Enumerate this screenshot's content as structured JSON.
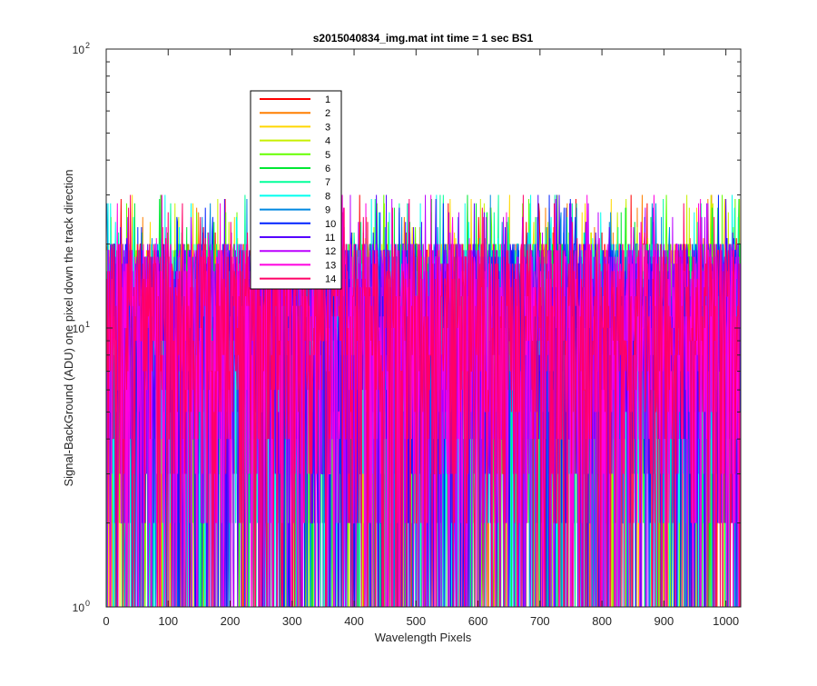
{
  "chart_data": {
    "type": "line",
    "title": "s2015040834_img.mat int time = 1 sec   BS1",
    "xlabel": "Wavelength Pixels",
    "ylabel": "Signal-BackGround (ADU) one pixel down the track direction",
    "xlim": [
      0,
      1024
    ],
    "ylim": [
      1,
      100
    ],
    "yscale": "log",
    "grid": false,
    "legend_position": "upper-left",
    "x_ticks": [
      0,
      100,
      200,
      300,
      400,
      500,
      600,
      700,
      800,
      900,
      1000
    ],
    "y_ticks": [
      {
        "value": 1,
        "base": "10",
        "exp": "0"
      },
      {
        "value": 10,
        "base": "10",
        "exp": "1"
      },
      {
        "value": 100,
        "base": "10",
        "exp": "2"
      }
    ],
    "x_range": [
      1,
      1024
    ],
    "value_range": [
      1,
      30
    ],
    "series": [
      {
        "name": "1",
        "color": "#ff0000"
      },
      {
        "name": "2",
        "color": "#ff7f00"
      },
      {
        "name": "3",
        "color": "#ffd700"
      },
      {
        "name": "4",
        "color": "#c8f000"
      },
      {
        "name": "5",
        "color": "#66ff00"
      },
      {
        "name": "6",
        "color": "#00e833"
      },
      {
        "name": "7",
        "color": "#00ff99"
      },
      {
        "name": "8",
        "color": "#00ffee"
      },
      {
        "name": "9",
        "color": "#0088e0"
      },
      {
        "name": "10",
        "color": "#0022ff"
      },
      {
        "name": "11",
        "color": "#5500ff"
      },
      {
        "name": "12",
        "color": "#bb00ff"
      },
      {
        "name": "13",
        "color": "#ff00e0"
      },
      {
        "name": "14",
        "color": "#ff0066"
      }
    ]
  }
}
